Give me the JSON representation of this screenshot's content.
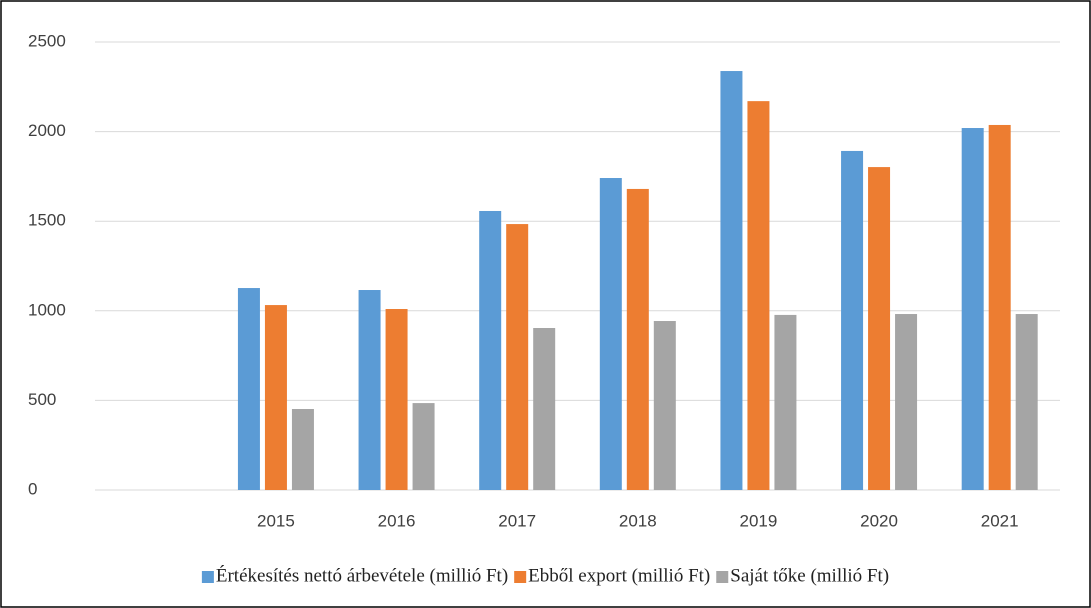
{
  "chart_data": {
    "type": "bar",
    "categories": [
      null,
      "2015",
      "2016",
      "2017",
      "2018",
      "2019",
      "2020",
      "2021"
    ],
    "series": [
      {
        "name": "Értékesítés nettó árbevétele (millió Ft)",
        "color": "#5b9bd5",
        "values": [
          null,
          1127,
          1116,
          1557,
          1741,
          2338,
          1892,
          2020
        ]
      },
      {
        "name": "Ebből export (millió Ft)",
        "color": "#ed7d31",
        "values": [
          null,
          1032,
          1010,
          1484,
          1680,
          2170,
          1802,
          2037
        ]
      },
      {
        "name": "Saját tőke (millió Ft)",
        "color": "#a5a5a5",
        "values": [
          null,
          452,
          485,
          904,
          943,
          977,
          982,
          982
        ]
      }
    ],
    "ylim": [
      0,
      2500
    ],
    "yticks": [
      0,
      500,
      1000,
      1500,
      2000,
      2500
    ],
    "grid": true,
    "legend": "bottom"
  }
}
